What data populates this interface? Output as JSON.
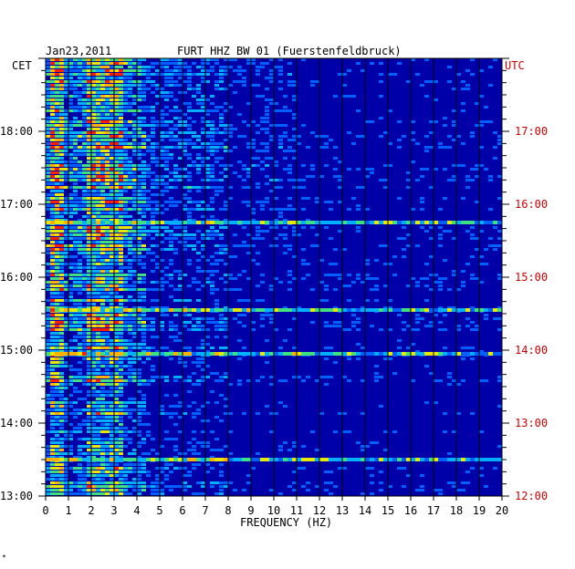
{
  "header": {
    "date": "Jan23,2011",
    "station": "FURT HHZ BW 01 (Fuerstenfeldbruck)"
  },
  "axis_labels": {
    "left_timezone": "CET",
    "right_timezone": "UTC",
    "x_label": "FREQUENCY (HZ)"
  },
  "footer_mark": "*",
  "colors": {
    "background": "#0000a8",
    "left_label_color": "#000000",
    "right_label_color": "#cc0000",
    "grid": "#000000"
  },
  "chart_data": {
    "type": "heatmap",
    "title": "FURT HHZ BW 01 (Fuerstenfeldbruck)",
    "subtitle": "Jan23,2011",
    "xlabel": "FREQUENCY (HZ)",
    "xlim": [
      0,
      20
    ],
    "x_ticks": [
      0,
      1,
      2,
      3,
      4,
      5,
      6,
      7,
      8,
      9,
      10,
      11,
      12,
      13,
      14,
      15,
      16,
      17,
      18,
      19,
      20
    ],
    "y_left_ticks": [
      {
        "label": "18:00",
        "value": 18
      },
      {
        "label": "17:00",
        "value": 17
      },
      {
        "label": "16:00",
        "value": 16
      },
      {
        "label": "15:00",
        "value": 15
      },
      {
        "label": "14:00",
        "value": 14
      },
      {
        "label": "13:00",
        "value": 13
      }
    ],
    "y_right_ticks": [
      {
        "label": "17:00",
        "value": 18
      },
      {
        "label": "16:00",
        "value": 17
      },
      {
        "label": "15:00",
        "value": 16
      },
      {
        "label": "14:00",
        "value": 15
      },
      {
        "label": "13:00",
        "value": 14
      },
      {
        "label": "12:00",
        "value": 13
      }
    ],
    "ylim_cet_hours": [
      13,
      19
    ],
    "features": {
      "dominant_band_hz": [
        2,
        3
      ],
      "low_freq_band_hz": [
        0.2,
        0.6
      ],
      "strong_horizontal_bands_cet": [
        13.5,
        14.95,
        15.55,
        16.75
      ],
      "grid": true
    }
  }
}
